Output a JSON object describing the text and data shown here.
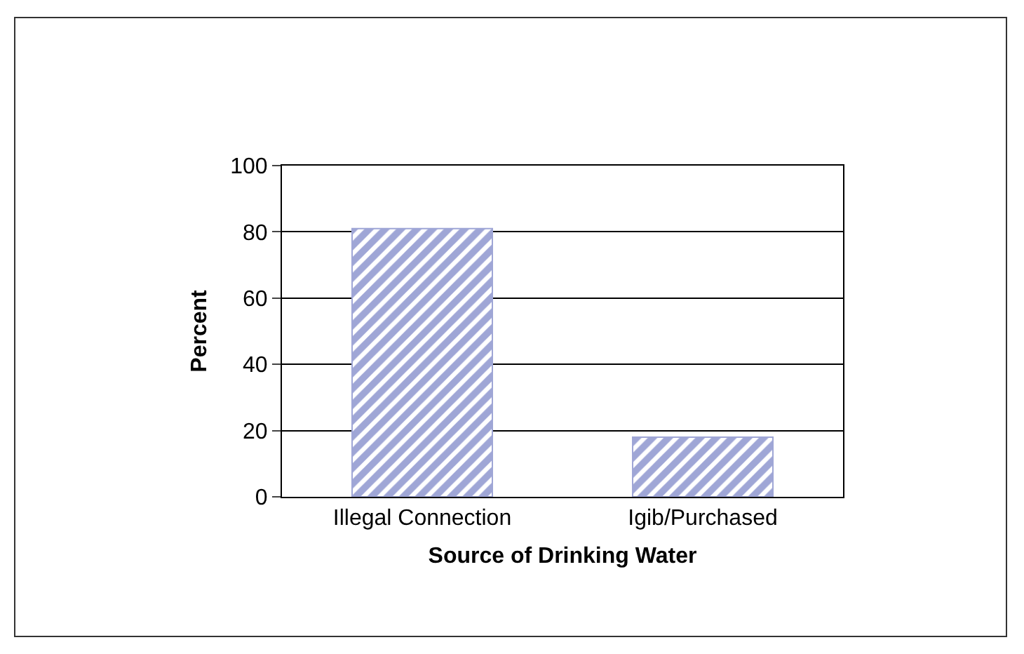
{
  "chart_data": {
    "type": "bar",
    "xlabel": "Source of Drinking Water",
    "ylabel": "Percent",
    "categories": [
      "Illegal Connection",
      "Igib/Purchased"
    ],
    "values": [
      81,
      18
    ],
    "color": "#9fa6d6",
    "ylim": [
      0,
      100
    ],
    "yticks": [
      0,
      20,
      40,
      60,
      80,
      100
    ],
    "grid": "y"
  }
}
